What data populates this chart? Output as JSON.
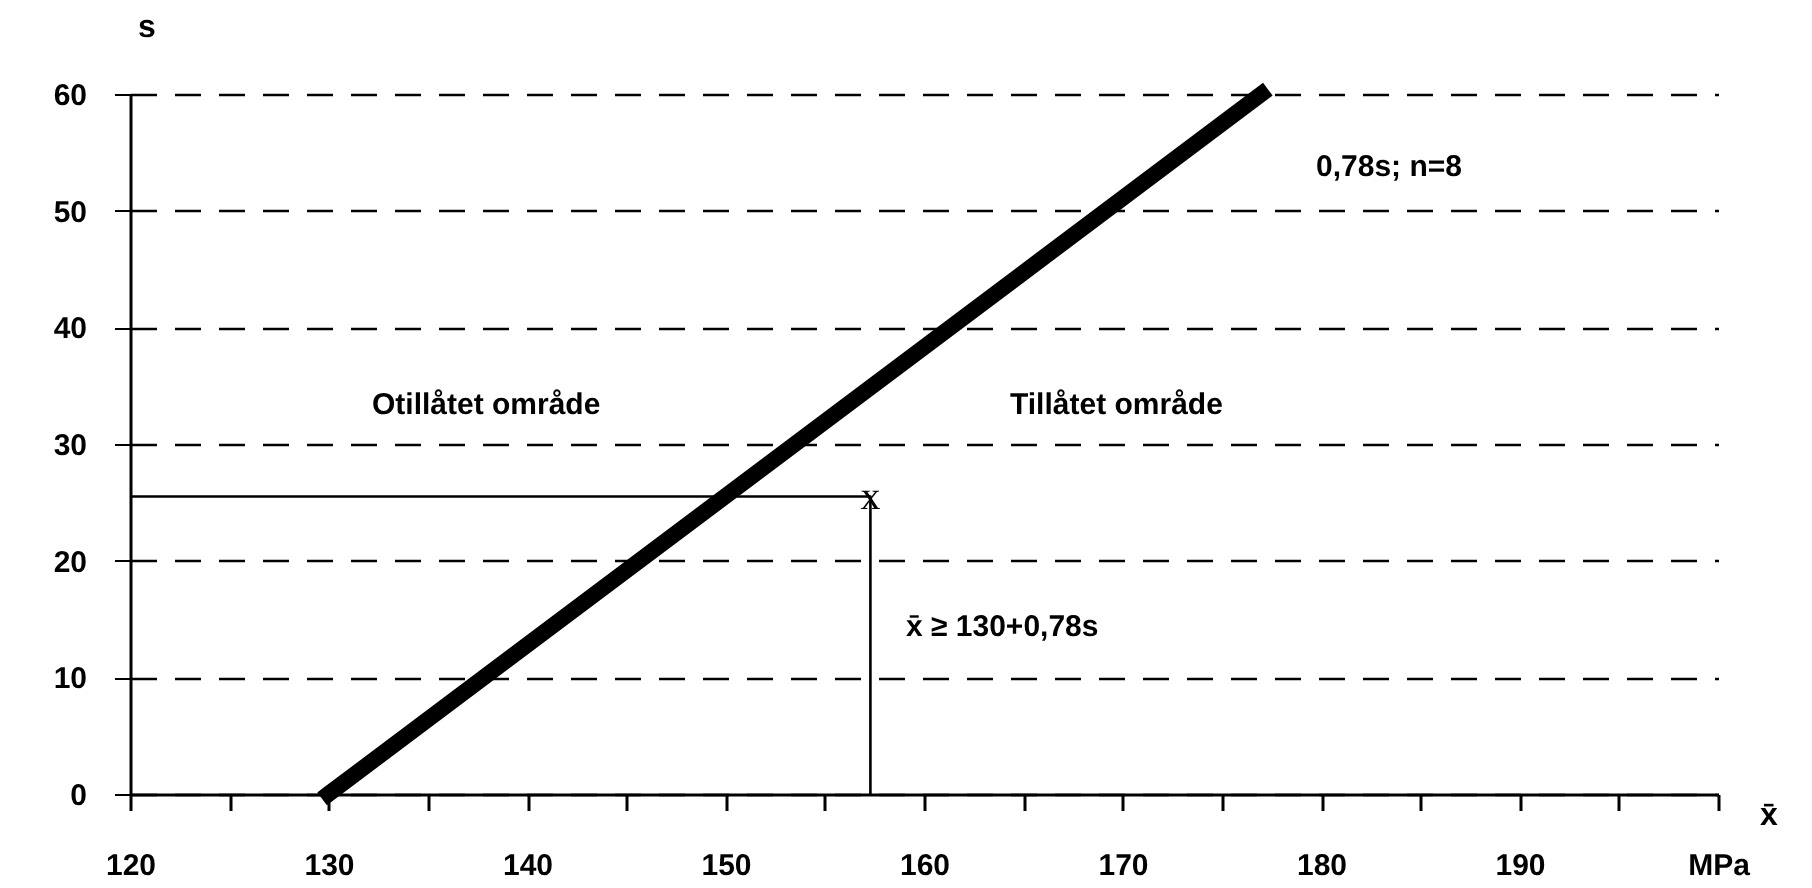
{
  "chart_data": {
    "type": "line",
    "xlabel": "x̄",
    "ylabel": "s",
    "xlim": [
      120,
      200
    ],
    "ylim": [
      0,
      60
    ],
    "xticks": [
      120,
      {
        "value": 125,
        "label": null
      },
      130,
      {
        "value": 135,
        "label": null
      },
      140,
      {
        "value": 145,
        "label": null
      },
      150,
      {
        "value": 155,
        "label": null
      },
      160,
      {
        "value": 165,
        "label": null
      },
      170,
      {
        "value": 175,
        "label": null
      },
      180,
      {
        "value": 185,
        "label": null
      },
      190,
      {
        "value": 195,
        "label": null
      },
      {
        "value": 200,
        "label": "MPa"
      }
    ],
    "yticks": [
      0,
      10,
      20,
      30,
      40,
      50,
      60
    ],
    "grid": "y",
    "line_style": "solid",
    "marker": "none",
    "series": [
      {
        "color": "#000000",
        "x": [
          130,
          177
        ],
        "values": [
          0,
          60
        ]
      },
      {
        "color": "#000000",
        "x": [
          120,
          157.3,
          157.3
        ],
        "values": [
          25.5,
          25.5,
          0
        ]
      }
    ],
    "annotations": [
      "Otillåtet område",
      "Tillåtet område",
      "0,78s; n=8",
      "x̄ ≥ 130+0,78s",
      {
        "text": "x",
        "x": 157.3,
        "y": 25.5
      }
    ]
  }
}
